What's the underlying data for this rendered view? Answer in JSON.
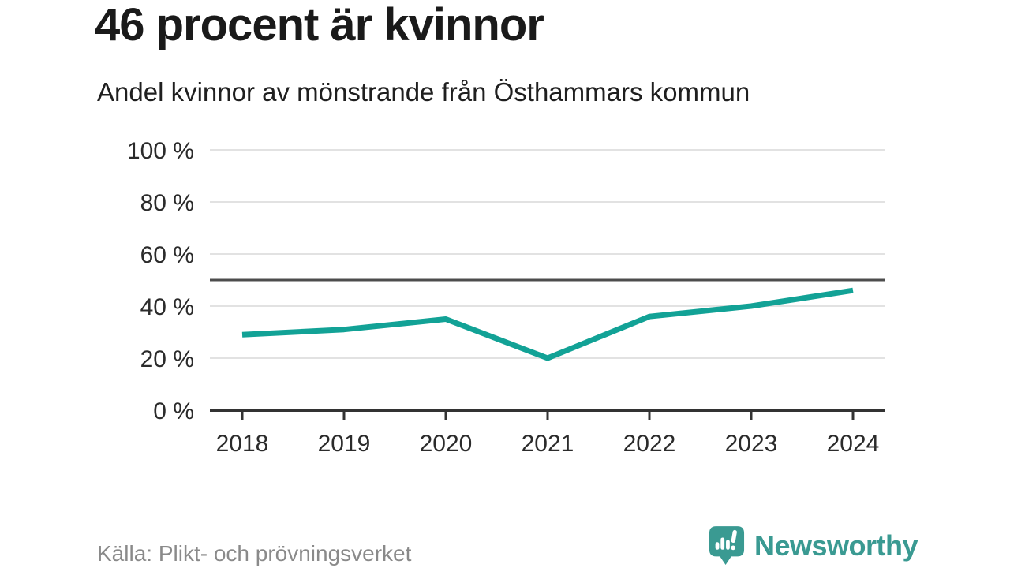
{
  "header": {
    "title": "46 procent är kvinnor",
    "subtitle": "Andel kvinnor av mönstrande från Östhammars kommun"
  },
  "chart_data": {
    "type": "line",
    "categories": [
      "2018",
      "2019",
      "2020",
      "2021",
      "2022",
      "2023",
      "2024"
    ],
    "values": [
      29,
      31,
      35,
      20,
      36,
      40,
      46
    ],
    "series_name": "Andel kvinnor av mönstrande",
    "title": "46 procent är kvinnor",
    "xlabel": "",
    "ylabel": "",
    "ylim": [
      0,
      100
    ],
    "yticks": [
      0,
      20,
      40,
      60,
      80,
      100
    ],
    "ytick_suffix": " %",
    "reference_line_value": 50,
    "grid": true,
    "legend_position": "none"
  },
  "footer": {
    "source": "Källa: Plikt- och prövningsverket",
    "logo_text": "Newsworthy"
  },
  "colors": {
    "line": "#12a296",
    "logo": "#3a9a92",
    "grid": "#e2e2e2",
    "reference": "#4d4d4d",
    "axis": "#333333",
    "tick_text": "#2b2b2b",
    "title_text": "#1a1a1a",
    "source_text": "#8a8a8a"
  }
}
